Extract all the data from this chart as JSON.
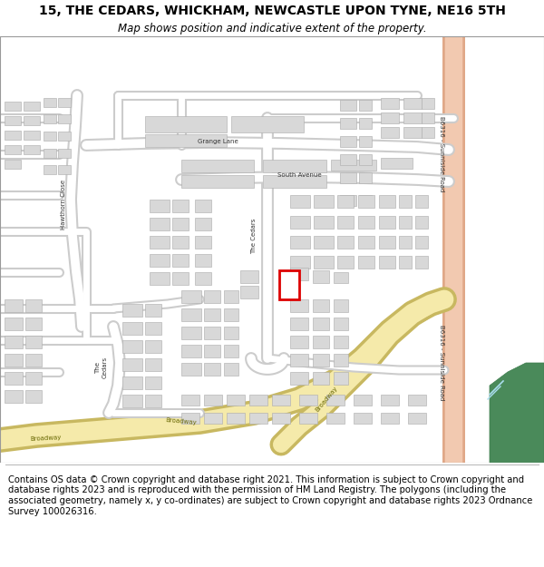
{
  "title": "15, THE CEDARS, WHICKHAM, NEWCASTLE UPON TYNE, NE16 5TH",
  "subtitle": "Map shows position and indicative extent of the property.",
  "footer": "Contains OS data © Crown copyright and database right 2021. This information is subject to Crown copyright and database rights 2023 and is reproduced with the permission of HM Land Registry. The polygons (including the associated geometry, namely x, y co-ordinates) are subject to Crown copyright and database rights 2023 Ordnance Survey 100026316.",
  "bg_color": "#ffffff",
  "map_bg": "#f8f8f8",
  "road_salmon_color": "#f2c9b0",
  "road_salmon_stroke": "#e0a888",
  "road_white_color": "#ffffff",
  "road_white_stroke": "#cccccc",
  "road_yellow_color": "#f5eaaa",
  "road_yellow_stroke": "#c8b860",
  "building_fill": "#d8d8d8",
  "building_stroke": "#aaaaaa",
  "highlight_fill": "#ffffff",
  "highlight_stroke": "#dd0000",
  "green_fill": "#4a8a5a",
  "green_stroke": "#3a7a4a",
  "water_color": "#aaddee",
  "title_fontsize": 10,
  "subtitle_fontsize": 8.5,
  "footer_fontsize": 7.2,
  "label_fontsize": 5.5,
  "small_label_fontsize": 5.0
}
